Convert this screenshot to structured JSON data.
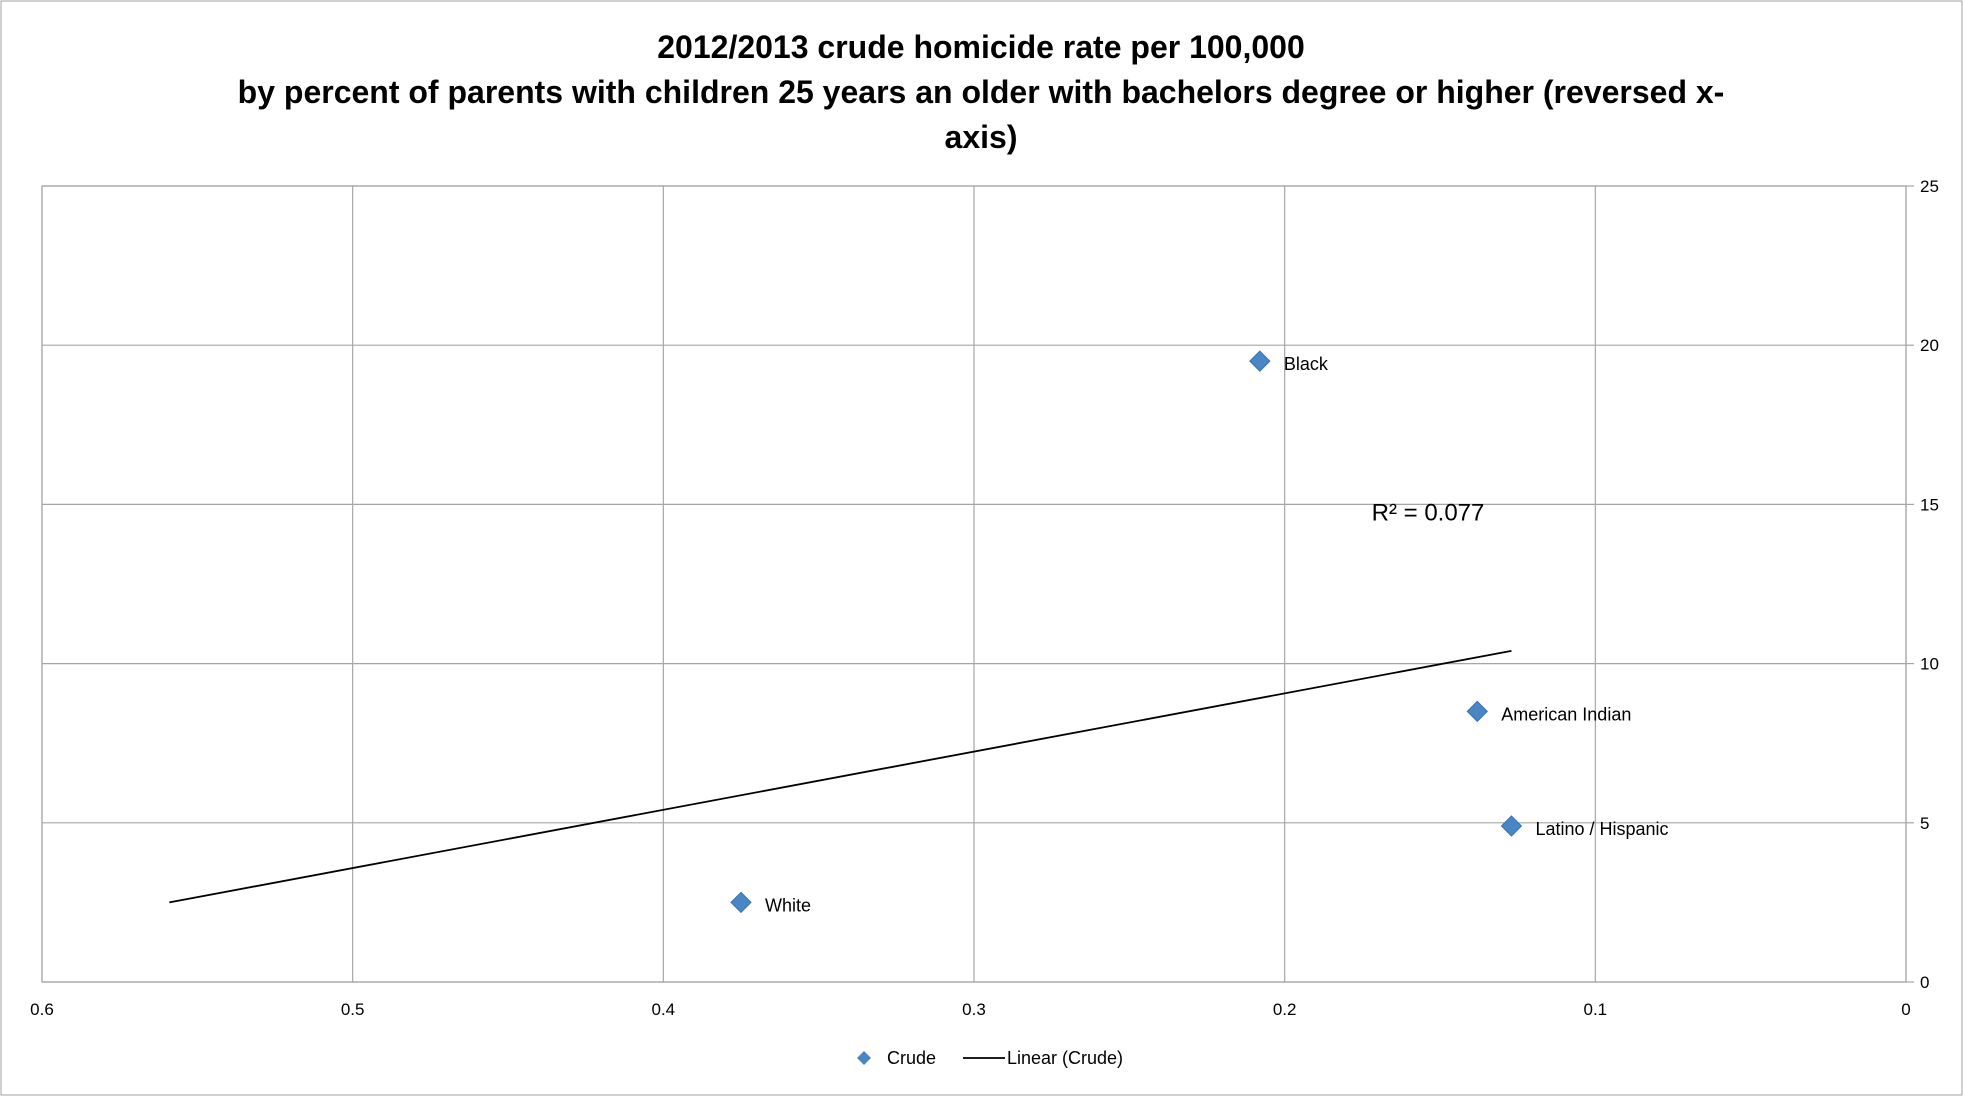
{
  "chart_data": {
    "type": "scatter",
    "title_lines": [
      "2012/2013 crude homicide rate per 100,000",
      "by percent of parents with children 25 years an older with bachelors degree or higher (reversed x-",
      "axis)"
    ],
    "xlabel": "",
    "ylabel": "",
    "x_axis_reversed": true,
    "y_axis_side": "right",
    "xlim": [
      0,
      0.6
    ],
    "ylim": [
      0,
      25
    ],
    "x_ticks": [
      0.6,
      0.5,
      0.4,
      0.3,
      0.2,
      0.1,
      0
    ],
    "x_tick_labels": [
      "0.6",
      "0.5",
      "0.4",
      "0.3",
      "0.2",
      "0.1",
      "0"
    ],
    "y_ticks": [
      0,
      5,
      10,
      15,
      20,
      25
    ],
    "y_tick_labels": [
      "0",
      "5",
      "10",
      "15",
      "20",
      "25"
    ],
    "grid": true,
    "legend_position": "bottom",
    "series": [
      {
        "name": "Crude",
        "marker": "diamond",
        "color": "#4a86c5",
        "points": [
          {
            "label": "Black",
            "x": 0.208,
            "y": 19.5
          },
          {
            "label": "American Indian",
            "x": 0.138,
            "y": 8.5
          },
          {
            "label": "Latino / Hispanic",
            "x": 0.127,
            "y": 4.9
          },
          {
            "label": "White",
            "x": 0.375,
            "y": 2.5
          }
        ]
      }
    ],
    "trendline": {
      "name": "Linear (Crude)",
      "type": "linear",
      "color": "#000000",
      "x_start": 0.559,
      "y_start": 2.5,
      "x_end": 0.127,
      "y_end": 10.4,
      "r_squared_label": "R² = 0.077"
    },
    "legend": [
      {
        "label": "Crude",
        "symbol": "diamond"
      },
      {
        "label": "Linear (Crude)",
        "symbol": "line"
      }
    ]
  }
}
